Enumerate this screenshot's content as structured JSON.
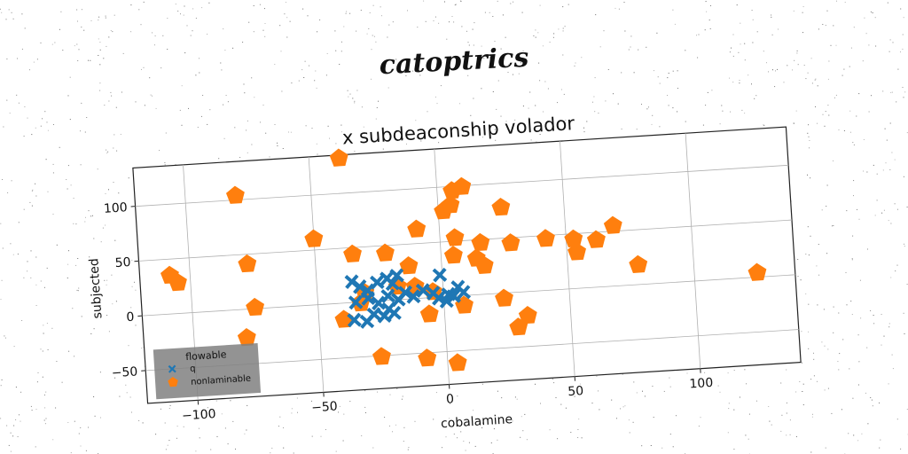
{
  "figure": {
    "suptitle": "catoptrics"
  },
  "chart_data": {
    "type": "scatter",
    "title": "x subdeaconship volador",
    "xlabel": "cobalamine",
    "ylabel": "subjected",
    "xlim": [
      -120,
      140
    ],
    "ylim": [
      -80,
      135
    ],
    "xticks": [
      -100,
      -50,
      0,
      50,
      100
    ],
    "yticks": [
      -50,
      0,
      50,
      100
    ],
    "grid": true,
    "legend": {
      "title": "flowable",
      "placement": "lower-left"
    },
    "series": [
      {
        "name": "q",
        "color": "#1f77b4",
        "marker": "X",
        "points": [
          [
            -36,
            19
          ],
          [
            -33,
            14
          ],
          [
            -30,
            10
          ],
          [
            -26,
            17
          ],
          [
            -22,
            20
          ],
          [
            -18,
            22
          ],
          [
            -20,
            15
          ],
          [
            -35,
            0
          ],
          [
            -30,
            3
          ],
          [
            -26,
            -2
          ],
          [
            -22,
            4
          ],
          [
            -18,
            0
          ],
          [
            -15,
            6
          ],
          [
            -12,
            2
          ],
          [
            -36,
            -16
          ],
          [
            -31,
            -18
          ],
          [
            -28,
            -12
          ],
          [
            -22,
            -8
          ],
          [
            -20,
            -12
          ],
          [
            -24,
            -14
          ],
          [
            -8,
            7
          ],
          [
            -4,
            4
          ],
          [
            -2,
            -1
          ],
          [
            2,
            2
          ],
          [
            4,
            0
          ],
          [
            6,
            8
          ],
          [
            8,
            3
          ],
          [
            1,
            -4
          ],
          [
            -1,
            20
          ]
        ]
      },
      {
        "name": "nonlaminable",
        "color": "#ff7f0e",
        "marker": "pentagon",
        "points": [
          [
            -38,
            132
          ],
          [
            -80,
            104
          ],
          [
            -108,
            35
          ],
          [
            -105,
            28
          ],
          [
            -77,
            41
          ],
          [
            -75,
            1
          ],
          [
            -79,
            -26
          ],
          [
            -50,
            60
          ],
          [
            -35,
            44
          ],
          [
            -22,
            43
          ],
          [
            -13,
            30
          ],
          [
            -18,
            12
          ],
          [
            -31,
            8
          ],
          [
            -33,
            -1
          ],
          [
            -40,
            -15
          ],
          [
            -26,
            -51
          ],
          [
            -9,
            63
          ],
          [
            -8,
            -55
          ],
          [
            -6,
            -15
          ],
          [
            2,
            78
          ],
          [
            5,
            83
          ],
          [
            6,
            96
          ],
          [
            10,
            99
          ],
          [
            6,
            53
          ],
          [
            5,
            37
          ],
          [
            16,
            47
          ],
          [
            14,
            33
          ],
          [
            17,
            26
          ],
          [
            25,
            78
          ],
          [
            28,
            45
          ],
          [
            42,
            47
          ],
          [
            53,
            45
          ],
          [
            54,
            33
          ],
          [
            62,
            43
          ],
          [
            69,
            55
          ],
          [
            78,
            18
          ],
          [
            24,
            -5
          ],
          [
            29,
            -32
          ],
          [
            33,
            -22
          ],
          [
            4,
            -61
          ],
          [
            8,
            -9
          ],
          [
            -11,
            11
          ],
          [
            -4,
            5
          ],
          [
            125,
            4
          ]
        ]
      }
    ]
  }
}
